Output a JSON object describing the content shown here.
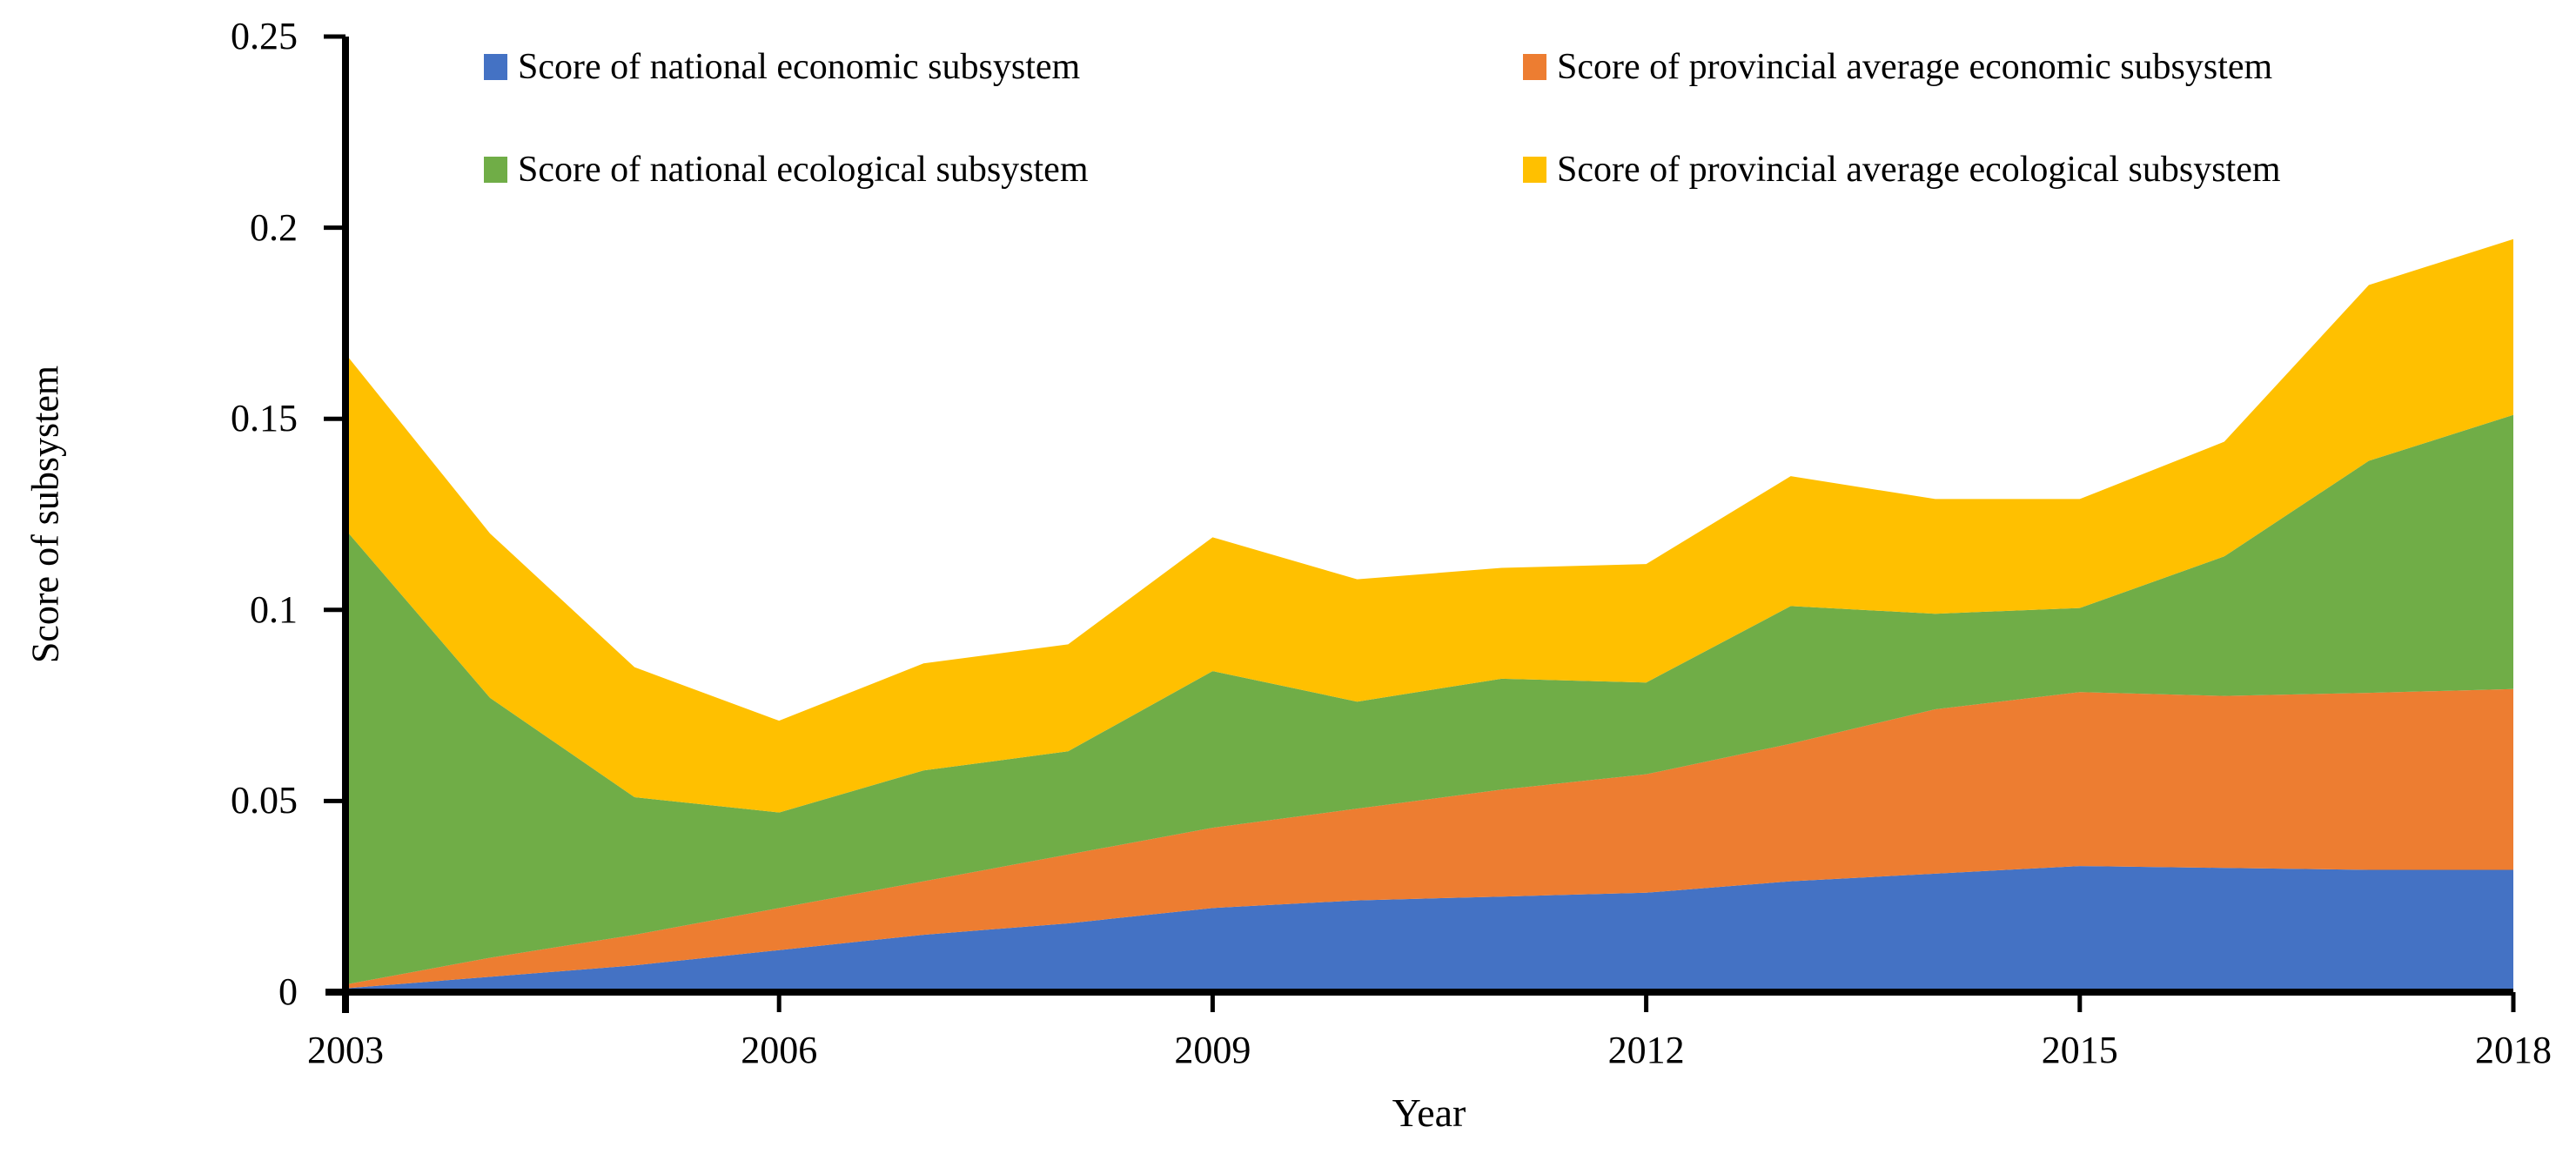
{
  "figure": {
    "background": "#ffffff",
    "text_color": "#000000"
  },
  "chart_data": {
    "type": "area",
    "stacked": true,
    "title": "",
    "xlabel": "Year",
    "ylabel": "Score of subsystem",
    "ylim": [
      0,
      0.25
    ],
    "grid": false,
    "legend_position": "top-two-columns",
    "x": [
      2003,
      2004,
      2005,
      2006,
      2007,
      2008,
      2009,
      2010,
      2011,
      2012,
      2013,
      2014,
      2015,
      2016,
      2017,
      2018
    ],
    "x_ticks": [
      "2003",
      "2006",
      "2009",
      "2012",
      "2015",
      "2018"
    ],
    "y_ticks": [
      "0",
      "0.05",
      "0.1",
      "0.15",
      "0.2",
      "0.25"
    ],
    "series": [
      {
        "key": "national-economic",
        "name": "Score of national economic subsystem",
        "color": "#4472C4",
        "values": [
          0.001,
          0.004,
          0.007,
          0.011,
          0.015,
          0.018,
          0.022,
          0.024,
          0.025,
          0.026,
          0.029,
          0.031,
          0.033,
          0.0325,
          0.032,
          0.032
        ]
      },
      {
        "key": "provincial-average-economic",
        "name": "Score of provincial average economic subsystem",
        "color": "#ED7D31",
        "values": [
          0.001,
          0.005,
          0.008,
          0.011,
          0.014,
          0.018,
          0.021,
          0.024,
          0.028,
          0.031,
          0.036,
          0.043,
          0.0455,
          0.045,
          0.0463,
          0.0473
        ]
      },
      {
        "key": "national-ecological",
        "name": "Score of national ecological subsystem",
        "color": "#70AD47",
        "values": [
          0.119,
          0.068,
          0.036,
          0.025,
          0.029,
          0.027,
          0.041,
          0.028,
          0.029,
          0.024,
          0.036,
          0.025,
          0.022,
          0.0365,
          0.0607,
          0.0717
        ]
      },
      {
        "key": "provincial-average-ecological",
        "name": "Score of provincial average ecological subsystem",
        "color": "#FFC000",
        "values": [
          0.046,
          0.043,
          0.034,
          0.024,
          0.028,
          0.028,
          0.035,
          0.032,
          0.029,
          0.031,
          0.034,
          0.03,
          0.0285,
          0.03,
          0.046,
          0.046
        ]
      }
    ],
    "axis_color": "#000000"
  }
}
